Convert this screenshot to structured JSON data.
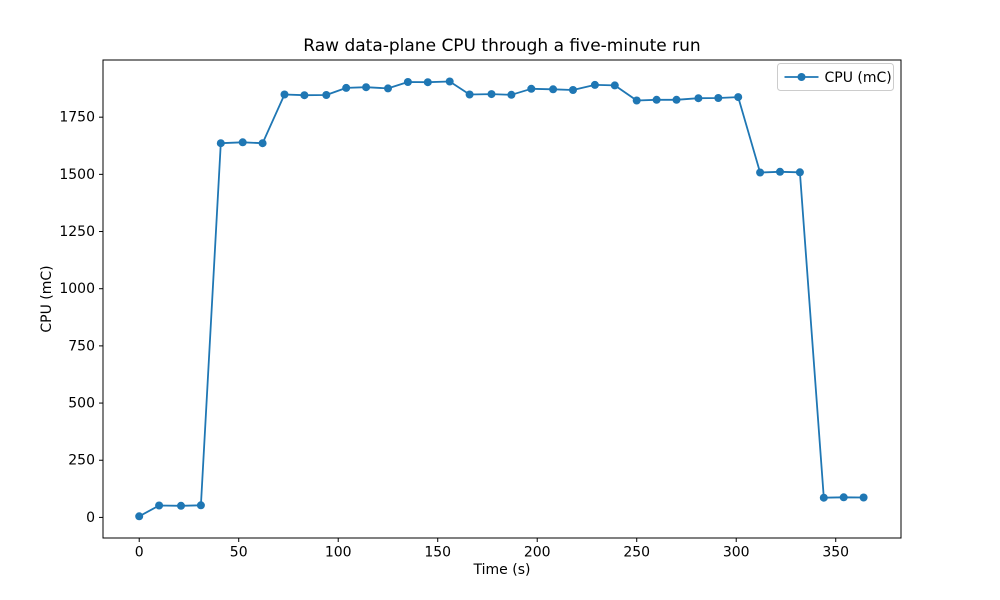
{
  "chart_data": {
    "type": "line",
    "title": "Raw data-plane CPU through a five-minute run",
    "xlabel": "Time (s)",
    "ylabel": "CPU (mC)",
    "xlim": [
      -18.2,
      382.8
    ],
    "ylim": [
      -90,
      2000
    ],
    "xticks": [
      0,
      50,
      100,
      150,
      200,
      250,
      300,
      350
    ],
    "yticks": [
      0,
      250,
      500,
      750,
      1000,
      1250,
      1500,
      1750
    ],
    "grid": false,
    "legend": {
      "label": "CPU (mC)",
      "position": "upper right"
    },
    "colors": {
      "line": "#1f77b4",
      "axis": "#000000",
      "legend_border": "#cccccc",
      "background": "#ffffff"
    },
    "series": [
      {
        "name": "CPU (mC)",
        "marker": "circle",
        "x": [
          0,
          10,
          21,
          31,
          41,
          52,
          62,
          73,
          83,
          94,
          104,
          114,
          125,
          135,
          145,
          156,
          166,
          177,
          187,
          197,
          208,
          218,
          229,
          239,
          250,
          260,
          270,
          281,
          291,
          301,
          312,
          322,
          332,
          344,
          354,
          364
        ],
        "y": [
          5,
          52,
          51,
          53,
          1636,
          1640,
          1636,
          1849,
          1846,
          1847,
          1878,
          1881,
          1876,
          1904,
          1903,
          1906,
          1849,
          1851,
          1848,
          1874,
          1872,
          1869,
          1891,
          1889,
          1823,
          1826,
          1826,
          1833,
          1834,
          1838,
          1508,
          1511,
          1509,
          86,
          88,
          87
        ]
      }
    ]
  }
}
